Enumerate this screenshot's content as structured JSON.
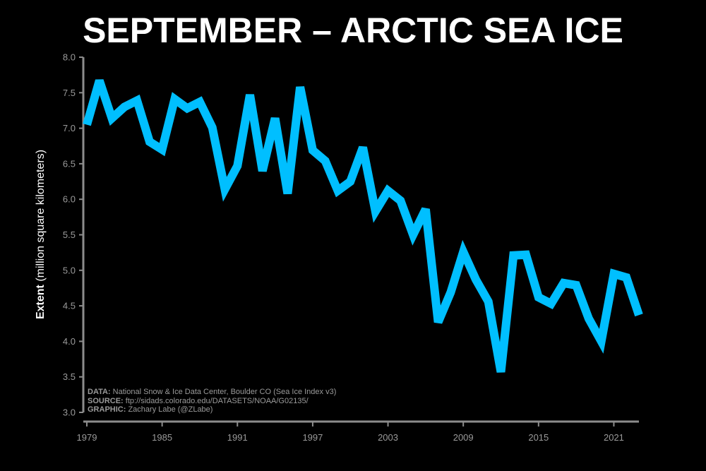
{
  "chart_data": {
    "type": "line",
    "title": "SEPTEMBER – ARCTIC SEA ICE",
    "ylabel_bold": "Extent",
    "ylabel_rest": "(million square kilometers)",
    "ylim": [
      3.0,
      8.0
    ],
    "xlim": [
      1979,
      2023
    ],
    "yticks": [
      "3.0",
      "3.5",
      "4.0",
      "4.5",
      "5.0",
      "5.5",
      "6.0",
      "6.5",
      "7.0",
      "7.5",
      "8.0"
    ],
    "xticks": [
      "1979",
      "1985",
      "1991",
      "1997",
      "2003",
      "2009",
      "2015",
      "2021"
    ],
    "grid": false,
    "series": [
      {
        "color": "#00bfff",
        "x": [
          1979,
          1980,
          1981,
          1982,
          1983,
          1984,
          1985,
          1986,
          1987,
          1988,
          1989,
          1990,
          1991,
          1992,
          1993,
          1994,
          1995,
          1996,
          1997,
          1998,
          1999,
          2000,
          2001,
          2002,
          2003,
          2004,
          2005,
          2006,
          2007,
          2008,
          2009,
          2010,
          2011,
          2012,
          2013,
          2014,
          2015,
          2016,
          2017,
          2018,
          2019,
          2020,
          2021,
          2022,
          2023
        ],
        "values": [
          7.05,
          7.67,
          7.14,
          7.3,
          7.39,
          6.81,
          6.7,
          7.41,
          7.28,
          7.37,
          7.01,
          6.14,
          6.47,
          7.47,
          6.4,
          7.14,
          6.08,
          7.58,
          6.69,
          6.54,
          6.12,
          6.25,
          6.73,
          5.83,
          6.12,
          5.98,
          5.5,
          5.86,
          4.27,
          4.69,
          5.26,
          4.87,
          4.56,
          3.57,
          5.21,
          5.22,
          4.62,
          4.53,
          4.82,
          4.79,
          4.32,
          4.0,
          4.95,
          4.9,
          4.37
        ]
      }
    ]
  },
  "credits": {
    "data_label": "DATA:",
    "data_text": "National Snow & Ice Data Center, Boulder CO (Sea Ice Index v3)",
    "source_label": "SOURCE:",
    "source_text": "ftp://sidads.colorado.edu/DATASETS/NOAA/G02135/",
    "graphic_label": "GRAPHIC:",
    "graphic_text": "Zachary Labe (@ZLabe)"
  }
}
